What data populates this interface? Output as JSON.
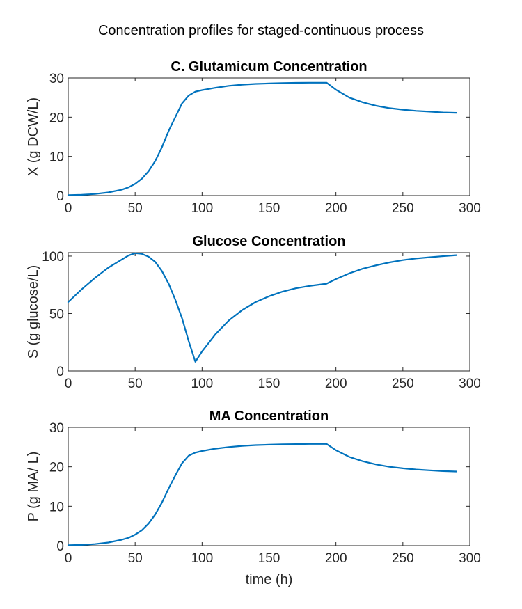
{
  "figure": {
    "suptitle": "Concentration profiles for staged-continuous process"
  },
  "chart_data": [
    {
      "type": "line",
      "title": "C. Glutamicum Concentration",
      "xlabel": "",
      "ylabel": "X (g DCW/L)",
      "xlim": [
        0,
        300
      ],
      "ylim": [
        0,
        30
      ],
      "xticks": [
        "0",
        "50",
        "100",
        "150",
        "200",
        "250",
        "300"
      ],
      "yticks": [
        "0",
        "10",
        "20",
        "30"
      ],
      "grid": false,
      "color": "#0072bd",
      "series": [
        {
          "x": [
            0,
            10,
            20,
            30,
            40,
            45,
            50,
            55,
            60,
            65,
            70,
            75,
            80,
            85,
            90,
            95,
            100,
            110,
            120,
            130,
            140,
            150,
            160,
            170,
            180,
            190,
            193,
            200,
            210,
            220,
            230,
            240,
            250,
            260,
            270,
            280,
            290
          ],
          "y": [
            0.1,
            0.2,
            0.4,
            0.8,
            1.5,
            2.1,
            3.0,
            4.3,
            6.2,
            8.8,
            12.3,
            16.5,
            20.0,
            23.5,
            25.5,
            26.5,
            26.9,
            27.5,
            28.0,
            28.3,
            28.5,
            28.6,
            28.7,
            28.75,
            28.8,
            28.8,
            28.8,
            27.0,
            25.0,
            23.8,
            22.9,
            22.3,
            21.9,
            21.6,
            21.4,
            21.2,
            21.1
          ]
        }
      ]
    },
    {
      "type": "line",
      "title": "Glucose Concentration",
      "xlabel": "",
      "ylabel": "S (g glucose/L)",
      "xlim": [
        0,
        300
      ],
      "ylim": [
        0,
        103
      ],
      "xticks": [
        "0",
        "50",
        "100",
        "150",
        "200",
        "250",
        "300"
      ],
      "yticks": [
        "0",
        "50",
        "100"
      ],
      "grid": false,
      "color": "#0072bd",
      "series": [
        {
          "x": [
            0,
            10,
            20,
            30,
            40,
            45,
            50,
            55,
            60,
            65,
            70,
            75,
            80,
            85,
            90,
            95,
            100,
            110,
            120,
            130,
            140,
            150,
            160,
            170,
            180,
            190,
            193,
            200,
            210,
            220,
            230,
            240,
            250,
            260,
            270,
            280,
            290
          ],
          "y": [
            60,
            71,
            81,
            90,
            97,
            100.5,
            102.5,
            102,
            99.5,
            95,
            87,
            76,
            62,
            46,
            26,
            8,
            17,
            32,
            44,
            53,
            60,
            65,
            69,
            72,
            74,
            75.5,
            76,
            80,
            85,
            89,
            92,
            94.5,
            96.5,
            98,
            99,
            100,
            100.8
          ]
        }
      ]
    },
    {
      "type": "line",
      "title": "MA Concentration",
      "xlabel": "time (h)",
      "ylabel": "P (g MA/ L)",
      "xlim": [
        0,
        300
      ],
      "ylim": [
        0,
        30
      ],
      "xticks": [
        "0",
        "50",
        "100",
        "150",
        "200",
        "250",
        "300"
      ],
      "yticks": [
        "0",
        "10",
        "20",
        "30"
      ],
      "grid": false,
      "color": "#0072bd",
      "series": [
        {
          "x": [
            0,
            10,
            20,
            30,
            40,
            45,
            50,
            55,
            60,
            65,
            70,
            75,
            80,
            85,
            90,
            95,
            100,
            110,
            120,
            130,
            140,
            150,
            160,
            170,
            180,
            190,
            193,
            200,
            210,
            220,
            230,
            240,
            250,
            260,
            270,
            280,
            290
          ],
          "y": [
            0.1,
            0.2,
            0.4,
            0.8,
            1.5,
            2.0,
            2.8,
            3.9,
            5.6,
            7.9,
            10.9,
            14.5,
            17.8,
            20.9,
            22.8,
            23.6,
            24.0,
            24.6,
            25.0,
            25.3,
            25.5,
            25.6,
            25.7,
            25.75,
            25.8,
            25.8,
            25.8,
            24.2,
            22.5,
            21.4,
            20.6,
            20.0,
            19.6,
            19.3,
            19.1,
            18.9,
            18.8
          ]
        }
      ]
    }
  ]
}
